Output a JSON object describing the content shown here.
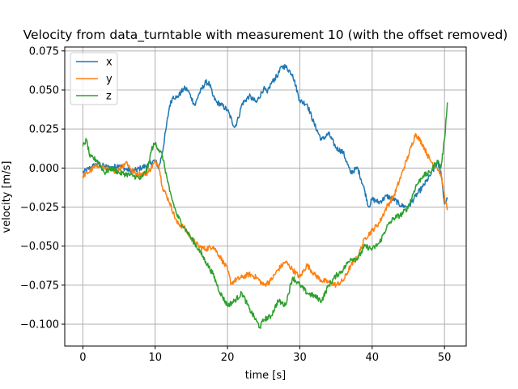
{
  "chart_data": {
    "type": "line",
    "title": "Velocity from data_turntable with measurement 10 (with the offset removed)",
    "xlabel": "time [s]",
    "ylabel": "velocity [m/s]",
    "xlim": [
      -2.5,
      53
    ],
    "ylim": [
      -0.114,
      0.0775
    ],
    "xticks": [
      0,
      10,
      20,
      30,
      40,
      50
    ],
    "yticks": [
      -0.1,
      -0.075,
      -0.05,
      -0.025,
      0.0,
      0.025,
      0.05,
      0.075
    ],
    "xtick_labels": [
      "0",
      "10",
      "20",
      "30",
      "40",
      "50"
    ],
    "ytick_labels": [
      "−0.100",
      "−0.075",
      "−0.050",
      "−0.025",
      "0.000",
      "0.025",
      "0.050",
      "0.075"
    ],
    "grid": true,
    "legend_position": "top-left",
    "series": [
      {
        "name": "x",
        "color": "#1f77b4",
        "points": [
          [
            0,
            -0.003
          ],
          [
            1,
            0.0
          ],
          [
            2,
            0.003
          ],
          [
            3,
            0.001
          ],
          [
            4,
            0.0
          ],
          [
            5,
            0.002
          ],
          [
            6,
            -0.001
          ],
          [
            7,
            -0.002
          ],
          [
            8,
            0.0
          ],
          [
            9,
            0.002
          ],
          [
            10,
            0.005
          ],
          [
            10.5,
            0.0
          ],
          [
            11,
            0.01
          ],
          [
            11.5,
            0.025
          ],
          [
            12,
            0.04
          ],
          [
            12.5,
            0.046
          ],
          [
            13,
            0.045
          ],
          [
            14,
            0.051
          ],
          [
            14.5,
            0.05
          ],
          [
            15,
            0.045
          ],
          [
            15.5,
            0.04
          ],
          [
            16,
            0.047
          ],
          [
            17,
            0.055
          ],
          [
            17.5,
            0.054
          ],
          [
            18,
            0.046
          ],
          [
            18.5,
            0.042
          ],
          [
            19,
            0.041
          ],
          [
            20,
            0.037
          ],
          [
            21,
            0.026
          ],
          [
            21.5,
            0.032
          ],
          [
            22,
            0.041
          ],
          [
            23,
            0.046
          ],
          [
            24,
            0.042
          ],
          [
            25,
            0.051
          ],
          [
            25.5,
            0.048
          ],
          [
            26,
            0.054
          ],
          [
            27,
            0.06
          ],
          [
            27.5,
            0.065
          ],
          [
            28,
            0.065
          ],
          [
            29,
            0.06
          ],
          [
            30,
            0.043
          ],
          [
            31,
            0.041
          ],
          [
            32,
            0.028
          ],
          [
            33,
            0.018
          ],
          [
            34,
            0.022
          ],
          [
            35,
            0.013
          ],
          [
            36,
            0.01
          ],
          [
            37,
            -0.003
          ],
          [
            38,
            0.0
          ],
          [
            39,
            -0.015
          ],
          [
            39.5,
            -0.025
          ],
          [
            40,
            -0.02
          ],
          [
            41,
            -0.022
          ],
          [
            42,
            -0.018
          ],
          [
            43,
            -0.02
          ],
          [
            44,
            -0.024
          ],
          [
            45,
            -0.025
          ],
          [
            46,
            -0.018
          ],
          [
            47,
            -0.012
          ],
          [
            48,
            -0.005
          ],
          [
            49,
            0.003
          ],
          [
            49.5,
            -0.002
          ],
          [
            50,
            -0.023
          ],
          [
            50.4,
            -0.02
          ]
        ]
      },
      {
        "name": "y",
        "color": "#ff7f0e",
        "points": [
          [
            0,
            -0.005
          ],
          [
            1,
            -0.002
          ],
          [
            2,
            0.002
          ],
          [
            3,
            0.0
          ],
          [
            4,
            -0.002
          ],
          [
            5,
            -0.001
          ],
          [
            6,
            0.004
          ],
          [
            7,
            -0.003
          ],
          [
            8,
            -0.004
          ],
          [
            9,
            -0.003
          ],
          [
            10,
            0.004
          ],
          [
            10.5,
            0.002
          ],
          [
            11,
            -0.012
          ],
          [
            12,
            -0.022
          ],
          [
            13,
            -0.035
          ],
          [
            14,
            -0.038
          ],
          [
            15,
            -0.045
          ],
          [
            16,
            -0.05
          ],
          [
            17,
            -0.052
          ],
          [
            18,
            -0.05
          ],
          [
            19,
            -0.057
          ],
          [
            20,
            -0.065
          ],
          [
            20.5,
            -0.074
          ],
          [
            21,
            -0.072
          ],
          [
            22,
            -0.07
          ],
          [
            23,
            -0.068
          ],
          [
            24,
            -0.07
          ],
          [
            25,
            -0.075
          ],
          [
            26,
            -0.072
          ],
          [
            27,
            -0.065
          ],
          [
            28,
            -0.06
          ],
          [
            29,
            -0.065
          ],
          [
            30,
            -0.07
          ],
          [
            31,
            -0.062
          ],
          [
            32,
            -0.068
          ],
          [
            33,
            -0.072
          ],
          [
            34,
            -0.073
          ],
          [
            35,
            -0.075
          ],
          [
            36,
            -0.072
          ],
          [
            37,
            -0.063
          ],
          [
            38,
            -0.057
          ],
          [
            39,
            -0.045
          ],
          [
            40,
            -0.04
          ],
          [
            41,
            -0.035
          ],
          [
            42,
            -0.025
          ],
          [
            43,
            -0.018
          ],
          [
            44,
            -0.005
          ],
          [
            45,
            0.008
          ],
          [
            46,
            0.022
          ],
          [
            47,
            0.015
          ],
          [
            48,
            0.005
          ],
          [
            49,
            0.0
          ],
          [
            49.5,
            -0.004
          ],
          [
            50,
            -0.018
          ],
          [
            50.4,
            -0.027
          ]
        ]
      },
      {
        "name": "z",
        "color": "#2ca02c",
        "points": [
          [
            0,
            0.014
          ],
          [
            0.5,
            0.018
          ],
          [
            1,
            0.007
          ],
          [
            2,
            0.005
          ],
          [
            3,
            -0.003
          ],
          [
            4,
            0.0
          ],
          [
            5,
            -0.003
          ],
          [
            6,
            -0.004
          ],
          [
            7,
            -0.005
          ],
          [
            8,
            -0.007
          ],
          [
            9,
            0.0
          ],
          [
            9.5,
            0.012
          ],
          [
            10,
            0.016
          ],
          [
            11,
            0.008
          ],
          [
            12,
            -0.015
          ],
          [
            13,
            -0.03
          ],
          [
            14,
            -0.038
          ],
          [
            15,
            -0.045
          ],
          [
            16,
            -0.052
          ],
          [
            17,
            -0.06
          ],
          [
            18,
            -0.068
          ],
          [
            19,
            -0.08
          ],
          [
            20,
            -0.088
          ],
          [
            21,
            -0.085
          ],
          [
            22,
            -0.08
          ],
          [
            23,
            -0.09
          ],
          [
            24,
            -0.098
          ],
          [
            24.5,
            -0.102
          ],
          [
            25,
            -0.097
          ],
          [
            26,
            -0.095
          ],
          [
            27,
            -0.085
          ],
          [
            28,
            -0.088
          ],
          [
            29,
            -0.07
          ],
          [
            30,
            -0.075
          ],
          [
            31,
            -0.08
          ],
          [
            32,
            -0.082
          ],
          [
            33,
            -0.085
          ],
          [
            34,
            -0.075
          ],
          [
            35,
            -0.069
          ],
          [
            36,
            -0.065
          ],
          [
            37,
            -0.058
          ],
          [
            38,
            -0.058
          ],
          [
            39,
            -0.05
          ],
          [
            40,
            -0.052
          ],
          [
            41,
            -0.048
          ],
          [
            42,
            -0.038
          ],
          [
            43,
            -0.032
          ],
          [
            44,
            -0.03
          ],
          [
            45,
            -0.025
          ],
          [
            46,
            -0.012
          ],
          [
            47,
            -0.005
          ],
          [
            48,
            -0.003
          ],
          [
            49,
            0.005
          ],
          [
            49.5,
            0.0
          ],
          [
            50,
            0.018
          ],
          [
            50.4,
            0.042
          ]
        ]
      }
    ]
  }
}
